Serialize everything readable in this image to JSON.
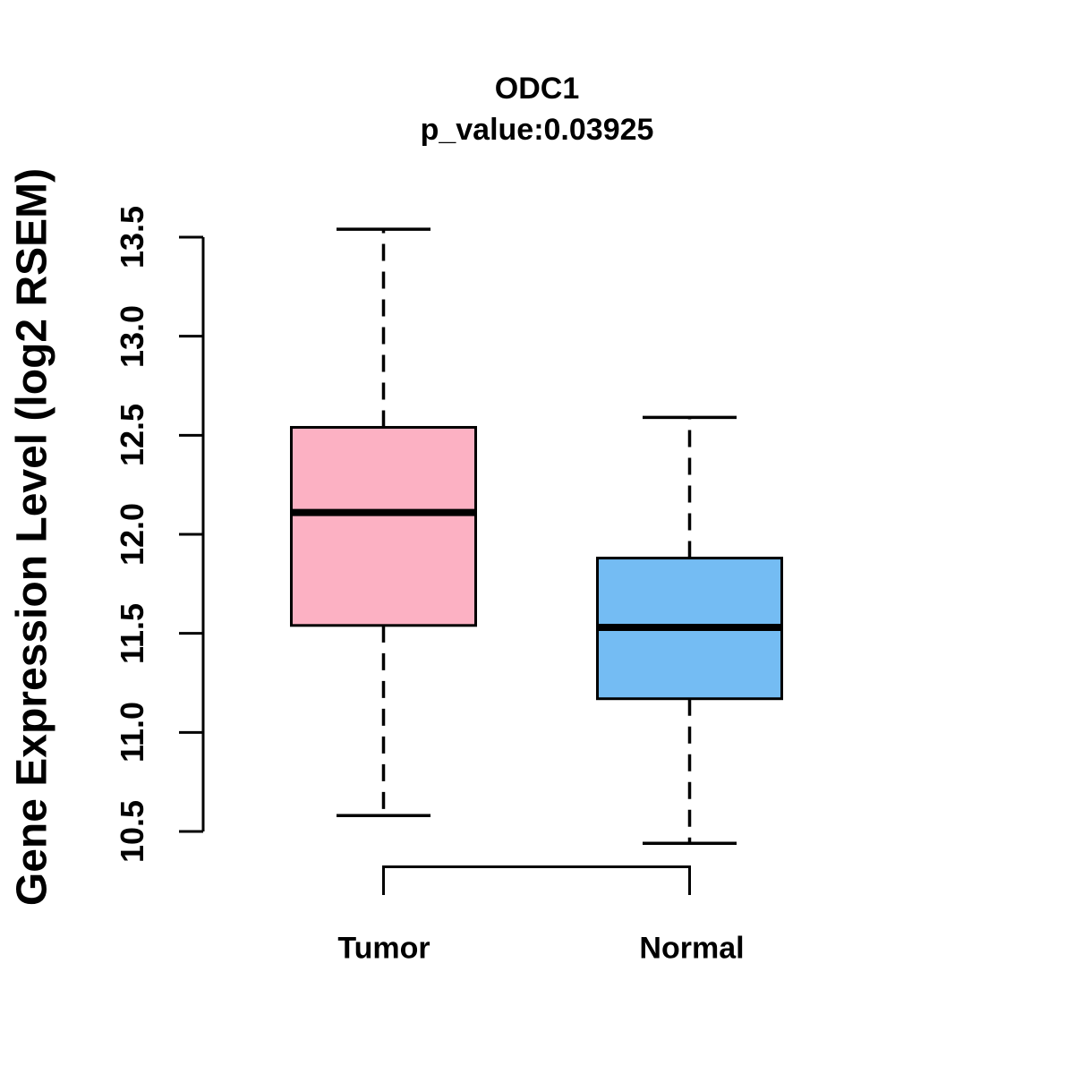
{
  "chart_data": {
    "type": "boxplot",
    "title": "ODC1",
    "subtitle": "p_value:0.03925",
    "ylabel": "Gene Expression Level (log2 RSEM)",
    "xlabel": "",
    "categories": [
      "Tumor",
      "Normal"
    ],
    "series": [
      {
        "name": "Tumor",
        "color": "#FCB1C3",
        "whisker_low": 10.58,
        "q1": 11.54,
        "median": 12.11,
        "q3": 12.54,
        "whisker_high": 13.54
      },
      {
        "name": "Normal",
        "color": "#74BCF3",
        "whisker_low": 10.44,
        "q1": 11.17,
        "median": 11.53,
        "q3": 11.88,
        "whisker_high": 12.59
      }
    ],
    "ylim": [
      10.5,
      13.5
    ],
    "yticks": [
      10.5,
      11.0,
      11.5,
      12.0,
      12.5,
      13.0,
      13.5
    ],
    "grid": false,
    "legend": "none"
  },
  "colors": {
    "background": "#FFFFFF",
    "stroke": "#000000",
    "tumor_fill": "#FCB1C3",
    "normal_fill": "#74BCF3"
  }
}
